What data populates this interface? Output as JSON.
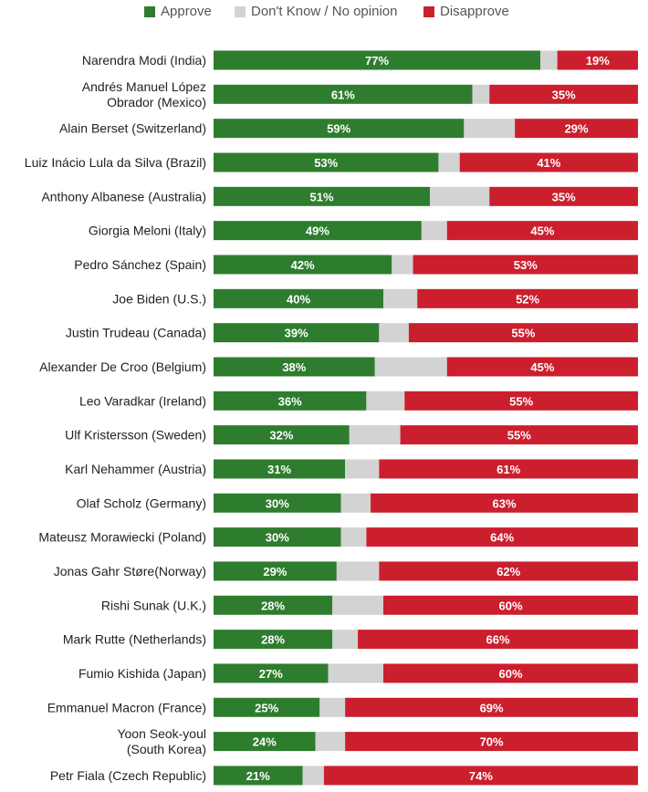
{
  "legend": {
    "approve": "Approve",
    "dont_know": "Don't Know / No opinion",
    "disapprove": "Disapprove"
  },
  "colors": {
    "approve": "#2e7d2e",
    "dont_know": "#d3d3d3",
    "disapprove": "#cb1f2e"
  },
  "chart_data": {
    "type": "bar",
    "orientation": "horizontal",
    "stacked": true,
    "xlim": [
      0,
      100
    ],
    "series_keys": [
      "approve",
      "dont_know",
      "disapprove"
    ],
    "rows": [
      {
        "label": [
          "Narendra Modi (India)"
        ],
        "approve": 77,
        "dont_know": 4,
        "disapprove": 19
      },
      {
        "label": [
          "Andrés Manuel López",
          "Obrador (Mexico)"
        ],
        "approve": 61,
        "dont_know": 4,
        "disapprove": 35
      },
      {
        "label": [
          "Alain Berset (Switzerland)"
        ],
        "approve": 59,
        "dont_know": 12,
        "disapprove": 29
      },
      {
        "label": [
          "Luiz Inácio Lula da Silva (Brazil)"
        ],
        "approve": 53,
        "dont_know": 5,
        "disapprove": 41
      },
      {
        "label": [
          "Anthony Albanese (Australia)"
        ],
        "approve": 51,
        "dont_know": 14,
        "disapprove": 35
      },
      {
        "label": [
          "Giorgia Meloni (Italy)"
        ],
        "approve": 49,
        "dont_know": 6,
        "disapprove": 45
      },
      {
        "label": [
          "Pedro Sánchez (Spain)"
        ],
        "approve": 42,
        "dont_know": 5,
        "disapprove": 53
      },
      {
        "label": [
          "Joe Biden (U.S.)"
        ],
        "approve": 40,
        "dont_know": 8,
        "disapprove": 52
      },
      {
        "label": [
          "Justin Trudeau (Canada)"
        ],
        "approve": 39,
        "dont_know": 7,
        "disapprove": 55
      },
      {
        "label": [
          "Alexander De Croo (Belgium)"
        ],
        "approve": 38,
        "dont_know": 17,
        "disapprove": 45
      },
      {
        "label": [
          "Leo Varadkar (Ireland)"
        ],
        "approve": 36,
        "dont_know": 9,
        "disapprove": 55
      },
      {
        "label": [
          "Ulf Kristersson (Sweden)"
        ],
        "approve": 32,
        "dont_know": 12,
        "disapprove": 55
      },
      {
        "label": [
          "Karl Nehammer (Austria)"
        ],
        "approve": 31,
        "dont_know": 8,
        "disapprove": 61
      },
      {
        "label": [
          "Olaf Scholz (Germany)"
        ],
        "approve": 30,
        "dont_know": 7,
        "disapprove": 63
      },
      {
        "label": [
          "Mateusz Morawiecki (Poland)"
        ],
        "approve": 30,
        "dont_know": 6,
        "disapprove": 64
      },
      {
        "label": [
          "Jonas Gahr Støre(Norway)"
        ],
        "approve": 29,
        "dont_know": 10,
        "disapprove": 62
      },
      {
        "label": [
          "Rishi Sunak (U.K.)"
        ],
        "approve": 28,
        "dont_know": 12,
        "disapprove": 60
      },
      {
        "label": [
          "Mark Rutte (Netherlands)"
        ],
        "approve": 28,
        "dont_know": 6,
        "disapprove": 66
      },
      {
        "label": [
          "Fumio Kishida (Japan)"
        ],
        "approve": 27,
        "dont_know": 13,
        "disapprove": 60
      },
      {
        "label": [
          "Emmanuel Macron (France)"
        ],
        "approve": 25,
        "dont_know": 6,
        "disapprove": 69
      },
      {
        "label": [
          "Yoon Seok-youl",
          "(South Korea)"
        ],
        "approve": 24,
        "dont_know": 7,
        "disapprove": 70
      },
      {
        "label": [
          "Petr Fiala (Czech Republic)"
        ],
        "approve": 21,
        "dont_know": 5,
        "disapprove": 74
      }
    ]
  }
}
